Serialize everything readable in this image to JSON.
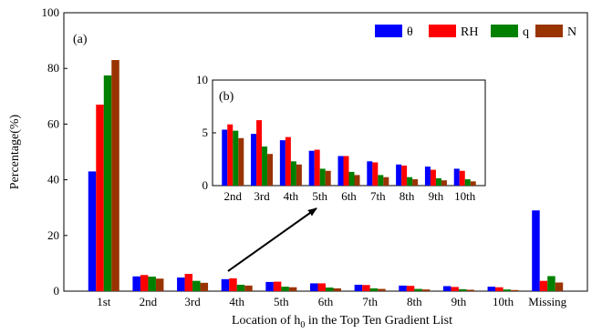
{
  "chart_data": [
    {
      "type": "bar",
      "panel_label": "(a)",
      "categories": [
        "1st",
        "2nd",
        "3rd",
        "4th",
        "5th",
        "6th",
        "7th",
        "8th",
        "9th",
        "10th",
        "Missing"
      ],
      "series": [
        {
          "name": "θ",
          "color": "#0000ff",
          "values": [
            43,
            5.3,
            4.9,
            4.3,
            3.3,
            2.8,
            2.3,
            2.0,
            1.8,
            1.6,
            29
          ]
        },
        {
          "name": "RH",
          "color": "#ff0000",
          "values": [
            67,
            5.8,
            6.2,
            4.6,
            3.4,
            2.8,
            2.2,
            1.9,
            1.5,
            1.4,
            3.7
          ]
        },
        {
          "name": "q",
          "color": "#008000",
          "values": [
            77.5,
            5.2,
            3.7,
            2.3,
            1.6,
            1.3,
            1.0,
            0.8,
            0.7,
            0.6,
            5.4
          ]
        },
        {
          "name": "N",
          "color": "#993300",
          "values": [
            83,
            4.5,
            3.0,
            2.0,
            1.4,
            1.0,
            0.8,
            0.6,
            0.5,
            0.4,
            3.1
          ]
        }
      ],
      "ylabel": "Percentage(%)",
      "xlabel_prefix": "Location of h",
      "xlabel_subscript": "0",
      "xlabel_suffix": " in the Top Ten Gradient List",
      "ylim": [
        0,
        100
      ],
      "yticks": [
        "0",
        "20",
        "40",
        "60",
        "80",
        "100"
      ],
      "legend_position": "top-right",
      "grid": false
    },
    {
      "type": "bar",
      "panel_label": "(b)",
      "categories": [
        "2nd",
        "3rd",
        "4th",
        "5th",
        "6th",
        "7th",
        "8th",
        "9th",
        "10th"
      ],
      "series": [
        {
          "name": "θ",
          "color": "#0000ff",
          "values": [
            5.3,
            4.9,
            4.3,
            3.3,
            2.8,
            2.3,
            2.0,
            1.8,
            1.6
          ]
        },
        {
          "name": "RH",
          "color": "#ff0000",
          "values": [
            5.8,
            6.2,
            4.6,
            3.4,
            2.8,
            2.2,
            1.9,
            1.5,
            1.4
          ]
        },
        {
          "name": "q",
          "color": "#008000",
          "values": [
            5.2,
            3.7,
            2.3,
            1.6,
            1.3,
            1.0,
            0.8,
            0.7,
            0.6
          ]
        },
        {
          "name": "N",
          "color": "#993300",
          "values": [
            4.5,
            3.0,
            2.0,
            1.4,
            1.0,
            0.8,
            0.6,
            0.5,
            0.4
          ]
        }
      ],
      "ylim": [
        0,
        10
      ],
      "yticks": [
        "0",
        "5",
        "10"
      ],
      "grid": false
    }
  ]
}
